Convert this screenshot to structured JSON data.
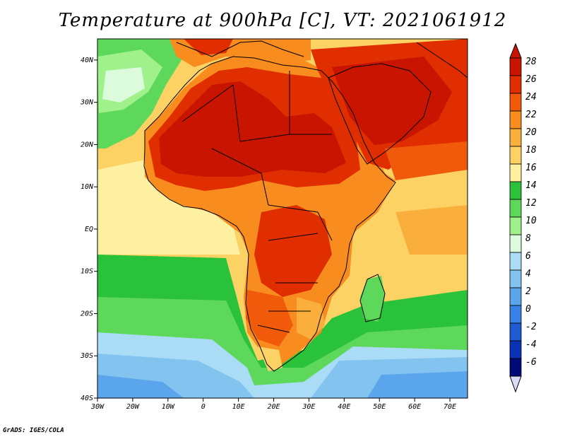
{
  "title": "Temperature at 900hPa [C], VT: 2021061912",
  "credit": "GrADS: IGES/COLA",
  "map": {
    "lon_ticks": [
      "30W",
      "20W",
      "10W",
      "0",
      "10E",
      "20E",
      "30E",
      "40E",
      "50E",
      "60E",
      "70E"
    ],
    "lat_ticks": [
      "40N",
      "30N",
      "20N",
      "10N",
      "EQ",
      "10S",
      "20S",
      "30S",
      "40S"
    ],
    "lon_range": [
      -30,
      75
    ],
    "lat_range": [
      -40,
      45
    ]
  },
  "colorbar": {
    "labels": [
      "28",
      "26",
      "24",
      "22",
      "20",
      "18",
      "16",
      "14",
      "12",
      "10",
      "8",
      "6",
      "4",
      "2",
      "0",
      "-2",
      "-4",
      "-6"
    ],
    "colors": [
      "#c81400",
      "#e02e00",
      "#f05a0a",
      "#f88c1e",
      "#faaf3c",
      "#fcd264",
      "#fdf0a0",
      "#2bc23b",
      "#5ed85a",
      "#a0f08c",
      "#dcfadc",
      "#aadcf5",
      "#82c3f0",
      "#5aa5eb",
      "#3782e6",
      "#1e5ad2",
      "#0a32b4",
      "#000a78"
    ],
    "top_arrow_color": "#c81400",
    "bottom_arrow_color": "#d8dcf8"
  },
  "palette": {
    "ocean_cool": "#5aa5eb",
    "ocean_mild": "#fcd264",
    "land_hot": "#e02e00",
    "land_warm": "#f88c1e",
    "green": "#2bc23b"
  }
}
